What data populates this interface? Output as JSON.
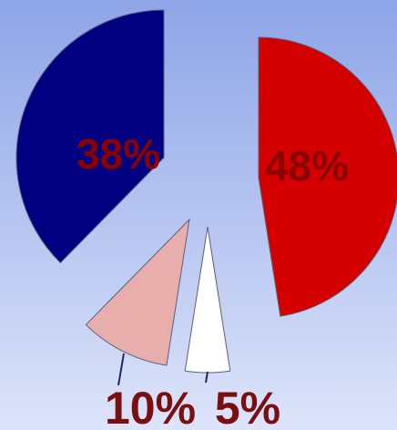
{
  "chart_data": {
    "type": "pie",
    "style": "exploded",
    "slices": [
      {
        "label": "48%",
        "value": 48,
        "color": "#d40000",
        "label_position": "inside",
        "label_color": "#8b0000"
      },
      {
        "label": "5%",
        "value": 5,
        "color": "#ffffff",
        "label_position": "outside",
        "label_color": "#7a0f12"
      },
      {
        "label": "10%",
        "value": 10,
        "color": "#e8aeac",
        "label_position": "outside",
        "label_color": "#7a0f12"
      },
      {
        "label": "38%",
        "value": 38,
        "color": "#000080",
        "label_position": "inside",
        "label_color": "#8b0000"
      }
    ],
    "title": "",
    "legend": "none"
  }
}
